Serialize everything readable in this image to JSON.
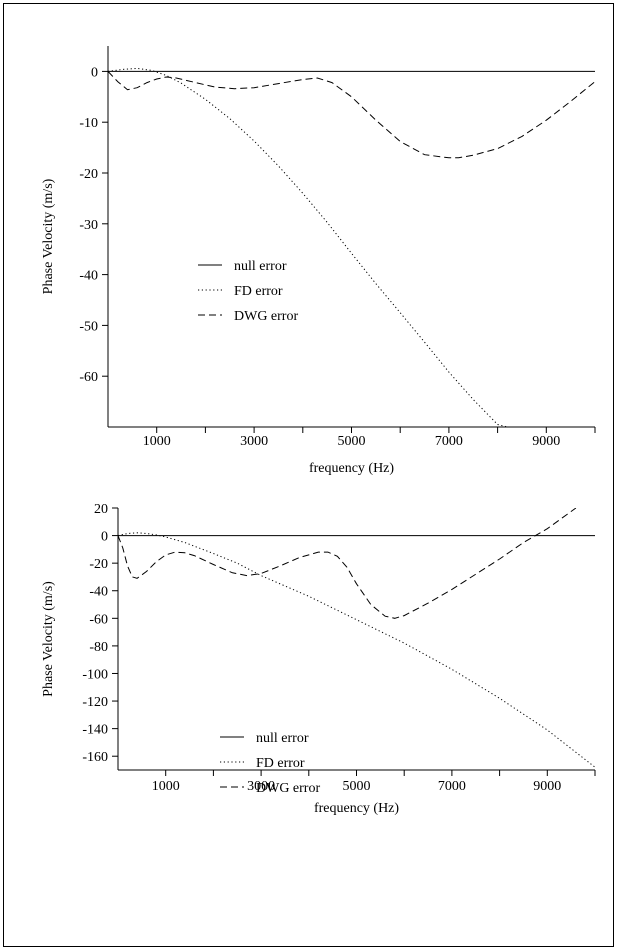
{
  "chart_data": [
    {
      "type": "line",
      "xlabel": "frequency (Hz)",
      "ylabel": "Phase Velocity (m/s)",
      "xlim": [
        0,
        10000
      ],
      "ylim": [
        -70,
        5
      ],
      "xticks": [
        1000,
        3000,
        5000,
        7000,
        9000
      ],
      "yticks": [
        0,
        -10,
        -20,
        -30,
        -40,
        -50,
        -60
      ],
      "legend_position": "center-left",
      "series": [
        {
          "name": "null error",
          "style": "solid",
          "x": [
            0,
            10000
          ],
          "y": [
            0,
            0
          ]
        },
        {
          "name": "FD error",
          "style": "dotted",
          "x": [
            0,
            300,
            600,
            900,
            1200,
            1500,
            2000,
            2500,
            3000,
            3500,
            4000,
            4500,
            5000,
            5500,
            6000,
            6500,
            7000,
            7500,
            8000,
            8200
          ],
          "y": [
            0,
            0.4,
            0.6,
            0.2,
            -0.8,
            -2.3,
            -5.5,
            -9.3,
            -13.7,
            -18.6,
            -24,
            -29.7,
            -35.8,
            -41.8,
            -47.5,
            -53.3,
            -59.2,
            -64.6,
            -69.5,
            -70
          ]
        },
        {
          "name": "DWG error",
          "style": "dashed",
          "x": [
            0,
            200,
            400,
            600,
            800,
            1000,
            1200,
            1400,
            1800,
            2200,
            2600,
            3000,
            3500,
            4000,
            4300,
            4600,
            5000,
            5500,
            6000,
            6500,
            7000,
            7200,
            7500,
            8000,
            8500,
            9000,
            9500,
            10000
          ],
          "y": [
            0,
            -2,
            -3.6,
            -3.2,
            -2.2,
            -1.5,
            -1.1,
            -1.3,
            -2.2,
            -3.1,
            -3.4,
            -3.2,
            -2.4,
            -1.6,
            -1.3,
            -2.2,
            -5,
            -9.6,
            -13.8,
            -16.4,
            -17,
            -17,
            -16.5,
            -15.2,
            -12.8,
            -9.6,
            -5.9,
            -2
          ]
        }
      ]
    },
    {
      "type": "line",
      "xlabel": "frequency (Hz)",
      "ylabel": "Phase Velocity (m/s)",
      "xlim": [
        0,
        10000
      ],
      "ylim": [
        -170,
        20
      ],
      "xticks": [
        1000,
        3000,
        5000,
        7000,
        9000
      ],
      "yticks": [
        20,
        0,
        -20,
        -40,
        -60,
        -80,
        -100,
        -120,
        -140,
        -160
      ],
      "legend_position": "center-left",
      "series": [
        {
          "name": "null error",
          "style": "solid",
          "x": [
            0,
            10000
          ],
          "y": [
            0,
            0
          ]
        },
        {
          "name": "FD error",
          "style": "dotted",
          "x": [
            0,
            200,
            400,
            600,
            800,
            1000,
            1400,
            2000,
            2500,
            3000,
            4000,
            5000,
            6000,
            7000,
            8000,
            9000,
            10000
          ],
          "y": [
            0,
            1.5,
            2,
            1.5,
            0.5,
            -1,
            -5,
            -13,
            -20,
            -29,
            -44,
            -61,
            -78,
            -97,
            -118,
            -141,
            -168
          ]
        },
        {
          "name": "DWG error",
          "style": "dashed",
          "x": [
            0,
            100,
            200,
            300,
            400,
            600,
            800,
            1000,
            1200,
            1400,
            1600,
            2000,
            2400,
            2700,
            3000,
            3400,
            3800,
            4200,
            4400,
            4600,
            4800,
            5000,
            5300,
            5600,
            5800,
            6000,
            6500,
            7000,
            7500,
            8000,
            8500,
            9000,
            9600
          ],
          "y": [
            0,
            -9,
            -22,
            -30,
            -31,
            -26,
            -19,
            -14,
            -12,
            -12.5,
            -14.5,
            -21,
            -27,
            -29,
            -27.5,
            -22,
            -16,
            -12,
            -12,
            -15,
            -23,
            -35,
            -50,
            -58.5,
            -60,
            -58,
            -49,
            -39,
            -28,
            -17,
            -5,
            5,
            20
          ]
        }
      ]
    }
  ]
}
